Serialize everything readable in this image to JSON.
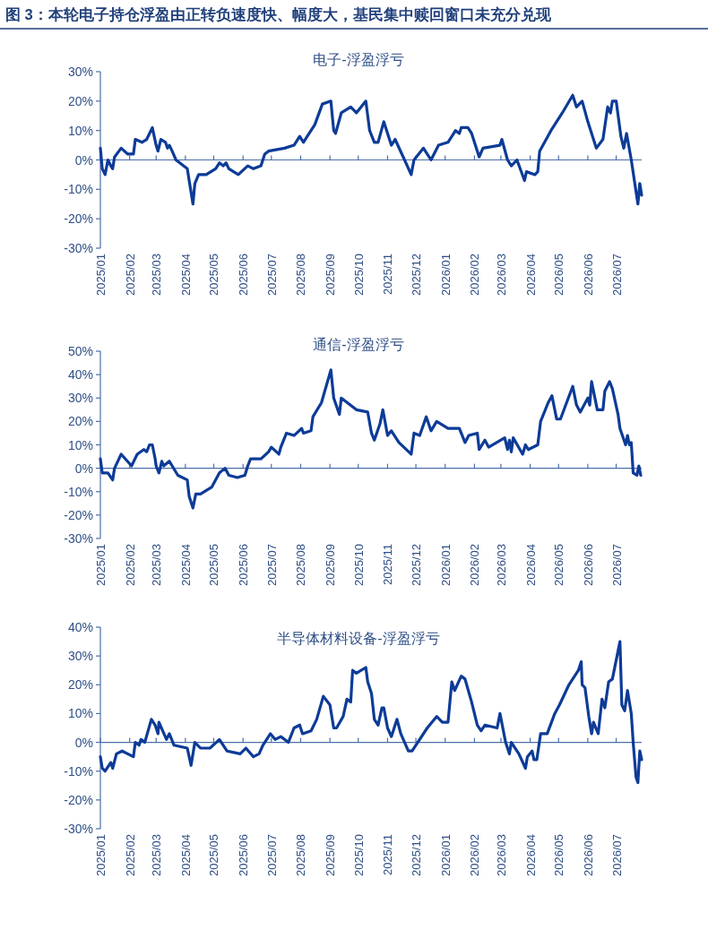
{
  "chart_data": [
    {
      "type": "line",
      "title": "电子-浮盈浮亏",
      "annotations": [
        "图 3：本轮电子持仓浮盈由正转负速度快、幅度大，基民集中赎回窗口未充分兑现"
      ],
      "x": [
        "2025-01-01",
        "2025-01-03",
        "2025-01-06",
        "2025-01-09",
        "2025-01-12",
        "2025-01-14",
        "2025-01-16",
        "2025-01-23",
        "2025-01-30",
        "2025-02-05",
        "2025-02-07",
        "2025-02-14",
        "2025-02-19",
        "2025-02-25",
        "2025-03-01",
        "2025-03-03",
        "2025-03-06",
        "2025-03-11",
        "2025-03-13",
        "2025-03-15",
        "2025-03-18",
        "2025-03-22",
        "2025-03-30",
        "2025-04-03",
        "2025-04-05",
        "2025-04-09",
        "2025-04-11",
        "2025-04-15",
        "2025-04-23",
        "2025-05-03",
        "2025-05-07",
        "2025-05-11",
        "2025-05-14",
        "2025-05-17",
        "2025-05-27",
        "2025-06-06",
        "2025-06-12",
        "2025-06-20",
        "2025-06-24",
        "2025-06-28",
        "2025-07-15",
        "2025-07-25",
        "2025-07-31",
        "2025-08-04",
        "2025-08-08",
        "2025-08-16",
        "2025-08-24",
        "2025-09-02",
        "2025-09-05",
        "2025-09-07",
        "2025-09-13",
        "2025-09-23",
        "2025-09-29",
        "2025-10-09",
        "2025-10-13",
        "2025-10-18",
        "2025-10-22",
        "2025-10-28",
        "2025-11-05",
        "2025-11-09",
        "2025-11-19",
        "2025-11-26",
        "2025-11-29",
        "2025-12-09",
        "2025-12-17",
        "2025-12-25",
        "2026-01-04",
        "2026-01-12",
        "2026-01-16",
        "2026-01-18",
        "2026-01-25",
        "2026-01-29",
        "2026-02-06",
        "2026-02-10",
        "2026-02-28",
        "2026-03-02",
        "2026-03-08",
        "2026-03-12",
        "2026-03-18",
        "2026-03-26",
        "2026-03-28",
        "2026-04-06",
        "2026-04-09",
        "2026-04-11",
        "2026-04-23",
        "2026-05-05",
        "2026-05-16",
        "2026-05-20",
        "2026-05-26",
        "2026-06-01",
        "2026-06-07",
        "2026-06-10",
        "2026-06-17",
        "2026-06-22",
        "2026-06-25",
        "2026-06-27",
        "2026-07-01",
        "2026-07-06",
        "2026-07-09",
        "2026-07-12",
        "2026-07-17",
        "2026-07-24",
        "2026-07-26",
        "2026-07-28"
      ],
      "series": [
        {
          "color": "#0d3b97",
          "values": [
            4,
            -3,
            -5,
            0,
            -2,
            -3,
            1,
            4,
            2,
            2,
            7,
            6,
            7,
            11,
            5,
            3,
            7,
            6,
            4,
            5,
            3,
            0,
            -2,
            -3,
            -7,
            -15,
            -8,
            -5,
            -5,
            -3,
            -1,
            -2,
            -1,
            -3,
            -5,
            -2,
            -3,
            -2,
            2,
            3,
            4,
            5,
            8,
            6,
            8,
            12,
            19,
            20,
            10,
            9,
            16,
            18,
            16,
            20,
            10,
            6,
            6,
            13,
            5,
            7,
            0,
            -5,
            0,
            4,
            0,
            5,
            6,
            10,
            9,
            11,
            11,
            9,
            1,
            4,
            5,
            7,
            0,
            -2,
            0,
            -7,
            -4,
            -5,
            -4,
            3,
            10,
            16,
            22,
            18,
            20,
            13,
            7,
            4,
            7,
            18,
            16,
            20,
            20,
            8,
            4,
            9,
            0,
            -15,
            -8,
            -12
          ]
        }
      ],
      "ref_lines": [
        {
          "axis": "y",
          "value": 0,
          "color": "#4a6fa8"
        }
      ],
      "xlim": [
        "2025-01-01",
        "2026-07-28"
      ],
      "ylim": [
        -30,
        30
      ],
      "yticks": [
        {
          "value": -30,
          "label": "-30%"
        },
        {
          "value": -20,
          "label": "-20%"
        },
        {
          "value": -10,
          "label": "-10%"
        },
        {
          "value": 0,
          "label": "0%"
        },
        {
          "value": 10,
          "label": "10%"
        },
        {
          "value": 20,
          "label": "20%"
        },
        {
          "value": 30,
          "label": "30%"
        }
      ],
      "xticks": [
        {
          "value": "2025-01-01",
          "label": "2025/01"
        },
        {
          "value": "2025-02-01",
          "label": "2025/02"
        },
        {
          "value": "2025-03-01",
          "label": "2025/03"
        },
        {
          "value": "2025-04-01",
          "label": "2025/04"
        },
        {
          "value": "2025-05-01",
          "label": "2025/05"
        },
        {
          "value": "2025-06-01",
          "label": "2025/06"
        },
        {
          "value": "2025-07-01",
          "label": "2025/07"
        },
        {
          "value": "2025-08-01",
          "label": "2025/08"
        },
        {
          "value": "2025-09-01",
          "label": "2025/09"
        },
        {
          "value": "2025-10-01",
          "label": "2025/10"
        },
        {
          "value": "2025-11-01",
          "label": "2025/11"
        },
        {
          "value": "2025-12-01",
          "label": "2025/12"
        },
        {
          "value": "2026-01-01",
          "label": "2026/01"
        },
        {
          "value": "2026-02-01",
          "label": "2026/02"
        },
        {
          "value": "2026-03-01",
          "label": "2026/03"
        },
        {
          "value": "2026-04-01",
          "label": "2026/04"
        },
        {
          "value": "2026-05-01",
          "label": "2026/05"
        },
        {
          "value": "2026-06-01",
          "label": "2026/06"
        },
        {
          "value": "2026-07-01",
          "label": "2026/07"
        }
      ]
    },
    {
      "type": "line",
      "title": "通信-浮盈浮亏",
      "x": [
        "2025-01-01",
        "2025-01-03",
        "2025-01-09",
        "2025-01-14",
        "2025-01-16",
        "2025-01-23",
        "2025-02-03",
        "2025-02-09",
        "2025-02-16",
        "2025-02-19",
        "2025-02-22",
        "2025-02-25",
        "2025-02-28",
        "2025-03-01",
        "2025-03-04",
        "2025-03-07",
        "2025-03-09",
        "2025-03-15",
        "2025-03-24",
        "2025-04-03",
        "2025-04-05",
        "2025-04-09",
        "2025-04-12",
        "2025-04-17",
        "2025-04-29",
        "2025-05-07",
        "2025-05-13",
        "2025-05-17",
        "2025-05-26",
        "2025-06-03",
        "2025-06-06",
        "2025-06-09",
        "2025-06-20",
        "2025-06-28",
        "2025-07-01",
        "2025-07-09",
        "2025-07-11",
        "2025-07-17",
        "2025-07-25",
        "2025-08-02",
        "2025-08-04",
        "2025-08-12",
        "2025-08-14",
        "2025-08-23",
        "2025-09-02",
        "2025-09-05",
        "2025-09-11",
        "2025-09-13",
        "2025-09-29",
        "2025-10-11",
        "2025-10-15",
        "2025-10-18",
        "2025-10-24",
        "2025-10-27",
        "2025-11-01",
        "2025-11-05",
        "2025-11-13",
        "2025-11-26",
        "2025-11-29",
        "2025-12-05",
        "2025-12-12",
        "2025-12-17",
        "2025-12-23",
        "2026-01-04",
        "2026-01-16",
        "2026-01-22",
        "2026-01-26",
        "2026-02-04",
        "2026-02-06",
        "2026-02-12",
        "2026-02-16",
        "2026-03-05",
        "2026-03-08",
        "2026-03-10",
        "2026-03-12",
        "2026-03-14",
        "2026-03-24",
        "2026-03-27",
        "2026-03-30",
        "2026-04-09",
        "2026-04-12",
        "2026-04-20",
        "2026-04-24",
        "2026-04-27",
        "2026-04-29",
        "2026-05-03",
        "2026-05-16",
        "2026-05-20",
        "2026-05-24",
        "2026-06-01",
        "2026-06-03",
        "2026-06-05",
        "2026-06-09",
        "2026-06-11",
        "2026-06-17",
        "2026-06-19",
        "2026-06-24",
        "2026-06-27",
        "2026-07-03",
        "2026-07-05",
        "2026-07-11",
        "2026-07-13",
        "2026-07-15",
        "2026-07-17",
        "2026-07-19",
        "2026-07-23",
        "2026-07-25",
        "2026-07-27"
      ],
      "series": [
        {
          "color": "#0d3b97",
          "values": [
            4,
            -2,
            -2,
            -5,
            0,
            6,
            1,
            6,
            8,
            7,
            10,
            10,
            4,
            1,
            -2,
            3,
            1,
            3,
            -3,
            -5,
            -12,
            -17,
            -11,
            -11,
            -8,
            -2,
            0,
            -3,
            -4,
            -3,
            1,
            4,
            4,
            7,
            9,
            6,
            9,
            15,
            14,
            17,
            15,
            16,
            22,
            28,
            42,
            30,
            23,
            30,
            25,
            24,
            15,
            12,
            19,
            25,
            14,
            16,
            11,
            6,
            15,
            14,
            22,
            16,
            20,
            17,
            17,
            11,
            14,
            15,
            8,
            12,
            9,
            13,
            8,
            12,
            7,
            13,
            6,
            10,
            8,
            10,
            20,
            28,
            31,
            25,
            21,
            21,
            35,
            27,
            24,
            30,
            27,
            37,
            29,
            25,
            25,
            33,
            37,
            34,
            23,
            17,
            10,
            14,
            10,
            11,
            -2,
            -3,
            1,
            -3
          ]
        }
      ],
      "ref_lines": [
        {
          "axis": "y",
          "value": 0,
          "color": "#4a6fa8"
        }
      ],
      "xlim": [
        "2025-01-01",
        "2026-07-28"
      ],
      "ylim": [
        -30,
        50
      ],
      "yticks": [
        {
          "value": -30,
          "label": "-30%"
        },
        {
          "value": -20,
          "label": "-20%"
        },
        {
          "value": -10,
          "label": "-10%"
        },
        {
          "value": 0,
          "label": "0%"
        },
        {
          "value": 10,
          "label": "10%"
        },
        {
          "value": 20,
          "label": "20%"
        },
        {
          "value": 30,
          "label": "30%"
        },
        {
          "value": 40,
          "label": "40%"
        },
        {
          "value": 50,
          "label": "50%"
        }
      ],
      "xticks": [
        {
          "value": "2025-01-01",
          "label": "2025/01"
        },
        {
          "value": "2025-02-01",
          "label": "2025/02"
        },
        {
          "value": "2025-03-01",
          "label": "2025/03"
        },
        {
          "value": "2025-04-01",
          "label": "2025/04"
        },
        {
          "value": "2025-05-01",
          "label": "2025/05"
        },
        {
          "value": "2025-06-01",
          "label": "2025/06"
        },
        {
          "value": "2025-07-01",
          "label": "2025/07"
        },
        {
          "value": "2025-08-01",
          "label": "2025/08"
        },
        {
          "value": "2025-09-01",
          "label": "2025/09"
        },
        {
          "value": "2025-10-01",
          "label": "2025/10"
        },
        {
          "value": "2025-11-01",
          "label": "2025/11"
        },
        {
          "value": "2025-12-01",
          "label": "2025/12"
        },
        {
          "value": "2026-01-01",
          "label": "2026/01"
        },
        {
          "value": "2026-02-01",
          "label": "2026/02"
        },
        {
          "value": "2026-03-01",
          "label": "2026/03"
        },
        {
          "value": "2026-04-01",
          "label": "2026/04"
        },
        {
          "value": "2026-05-01",
          "label": "2026/05"
        },
        {
          "value": "2026-06-01",
          "label": "2026/06"
        },
        {
          "value": "2026-07-01",
          "label": "2026/07"
        }
      ]
    },
    {
      "type": "line",
      "title": "半导体材料设备-浮盈浮亏",
      "x": [
        "2025-01-01",
        "2025-01-03",
        "2025-01-06",
        "2025-01-12",
        "2025-01-14",
        "2025-01-18",
        "2025-01-24",
        "2025-02-05",
        "2025-02-07",
        "2025-02-11",
        "2025-02-13",
        "2025-02-17",
        "2025-02-24",
        "2025-02-28",
        "2025-03-03",
        "2025-03-04",
        "2025-03-12",
        "2025-03-15",
        "2025-03-20",
        "2025-04-03",
        "2025-04-07",
        "2025-04-11",
        "2025-04-17",
        "2025-04-27",
        "2025-05-07",
        "2025-05-15",
        "2025-05-29",
        "2025-06-04",
        "2025-06-12",
        "2025-06-18",
        "2025-06-22",
        "2025-06-30",
        "2025-07-05",
        "2025-07-11",
        "2025-07-19",
        "2025-07-25",
        "2025-07-31",
        "2025-08-03",
        "2025-08-12",
        "2025-08-18",
        "2025-08-25",
        "2025-09-01",
        "2025-09-05",
        "2025-09-08",
        "2025-09-15",
        "2025-09-19",
        "2025-09-23",
        "2025-09-25",
        "2025-09-29",
        "2025-10-09",
        "2025-10-11",
        "2025-10-15",
        "2025-10-18",
        "2025-10-22",
        "2025-10-26",
        "2025-10-28",
        "2025-11-01",
        "2025-11-05",
        "2025-11-11",
        "2025-11-15",
        "2025-11-23",
        "2025-11-27",
        "2025-12-13",
        "2025-12-23",
        "2025-12-29",
        "2026-01-04",
        "2026-01-08",
        "2026-01-11",
        "2026-01-18",
        "2026-01-22",
        "2026-01-29",
        "2026-02-04",
        "2026-02-08",
        "2026-02-12",
        "2026-02-25",
        "2026-02-28",
        "2026-03-06",
        "2026-03-10",
        "2026-03-12",
        "2026-03-20",
        "2026-03-27",
        "2026-03-29",
        "2026-04-03",
        "2026-04-05",
        "2026-04-08",
        "2026-04-12",
        "2026-04-19",
        "2026-04-27",
        "2026-05-02",
        "2026-05-12",
        "2026-05-22",
        "2026-05-25",
        "2026-05-26",
        "2026-05-29",
        "2026-06-02",
        "2026-06-05",
        "2026-06-07",
        "2026-06-12",
        "2026-06-16",
        "2026-06-19",
        "2026-06-23",
        "2026-06-27",
        "2026-07-05",
        "2026-07-07",
        "2026-07-10",
        "2026-07-13",
        "2026-07-17",
        "2026-07-19",
        "2026-07-22",
        "2026-07-24",
        "2026-07-26",
        "2026-07-28"
      ],
      "series": [
        {
          "color": "#0d3b97",
          "values": [
            -5,
            -9,
            -10,
            -7,
            -9,
            -4,
            -3,
            -5,
            0,
            -1,
            1,
            0,
            8,
            6,
            3,
            7,
            1,
            3,
            -1,
            -2,
            -8,
            0,
            -2,
            -2,
            1,
            -3,
            -4,
            -2,
            -5,
            -4,
            -1,
            3,
            1,
            2,
            0,
            5,
            6,
            3,
            4,
            8,
            16,
            13,
            5,
            5,
            9,
            15,
            14,
            25,
            24,
            26,
            21,
            17,
            8,
            6,
            12,
            12,
            5,
            2,
            8,
            3,
            -3,
            -3,
            5,
            9,
            7,
            7,
            21,
            18,
            23,
            22,
            14,
            6,
            4,
            6,
            5,
            10,
            0,
            -4,
            0,
            -4,
            -9,
            -5,
            -3,
            -6,
            -6,
            3,
            3,
            10,
            13,
            20,
            25,
            28,
            20,
            19,
            9,
            3,
            7,
            3,
            15,
            12,
            21,
            22,
            35,
            13,
            11,
            18,
            10,
            0,
            -12,
            -14,
            -3,
            -6
          ]
        }
      ],
      "ref_lines": [
        {
          "axis": "y",
          "value": 0,
          "color": "#4a6fa8"
        }
      ],
      "xlim": [
        "2025-01-01",
        "2026-07-28"
      ],
      "ylim": [
        -30,
        40
      ],
      "yticks": [
        {
          "value": -30,
          "label": "-30%"
        },
        {
          "value": -20,
          "label": "-20%"
        },
        {
          "value": -10,
          "label": "-10%"
        },
        {
          "value": 0,
          "label": "0%"
        },
        {
          "value": 10,
          "label": "10%"
        },
        {
          "value": 20,
          "label": "20%"
        },
        {
          "value": 30,
          "label": "30%"
        },
        {
          "value": 40,
          "label": "40%"
        }
      ],
      "xticks": [
        {
          "value": "2025-01-01",
          "label": "2025/01"
        },
        {
          "value": "2025-02-01",
          "label": "2025/02"
        },
        {
          "value": "2025-03-01",
          "label": "2025/03"
        },
        {
          "value": "2025-04-01",
          "label": "2025/04"
        },
        {
          "value": "2025-05-01",
          "label": "2025/05"
        },
        {
          "value": "2025-06-01",
          "label": "2025/06"
        },
        {
          "value": "2025-07-01",
          "label": "2025/07"
        },
        {
          "value": "2025-08-01",
          "label": "2025/08"
        },
        {
          "value": "2025-09-01",
          "label": "2025/09"
        },
        {
          "value": "2025-10-01",
          "label": "2025/10"
        },
        {
          "value": "2025-11-01",
          "label": "2025/11"
        },
        {
          "value": "2025-12-01",
          "label": "2025/12"
        },
        {
          "value": "2026-01-01",
          "label": "2026/01"
        },
        {
          "value": "2026-02-01",
          "label": "2026/02"
        },
        {
          "value": "2026-03-01",
          "label": "2026/03"
        },
        {
          "value": "2026-04-01",
          "label": "2026/04"
        },
        {
          "value": "2026-05-01",
          "label": "2026/05"
        },
        {
          "value": "2026-06-01",
          "label": "2026/06"
        },
        {
          "value": "2026-07-01",
          "label": "2026/07"
        }
      ]
    }
  ]
}
